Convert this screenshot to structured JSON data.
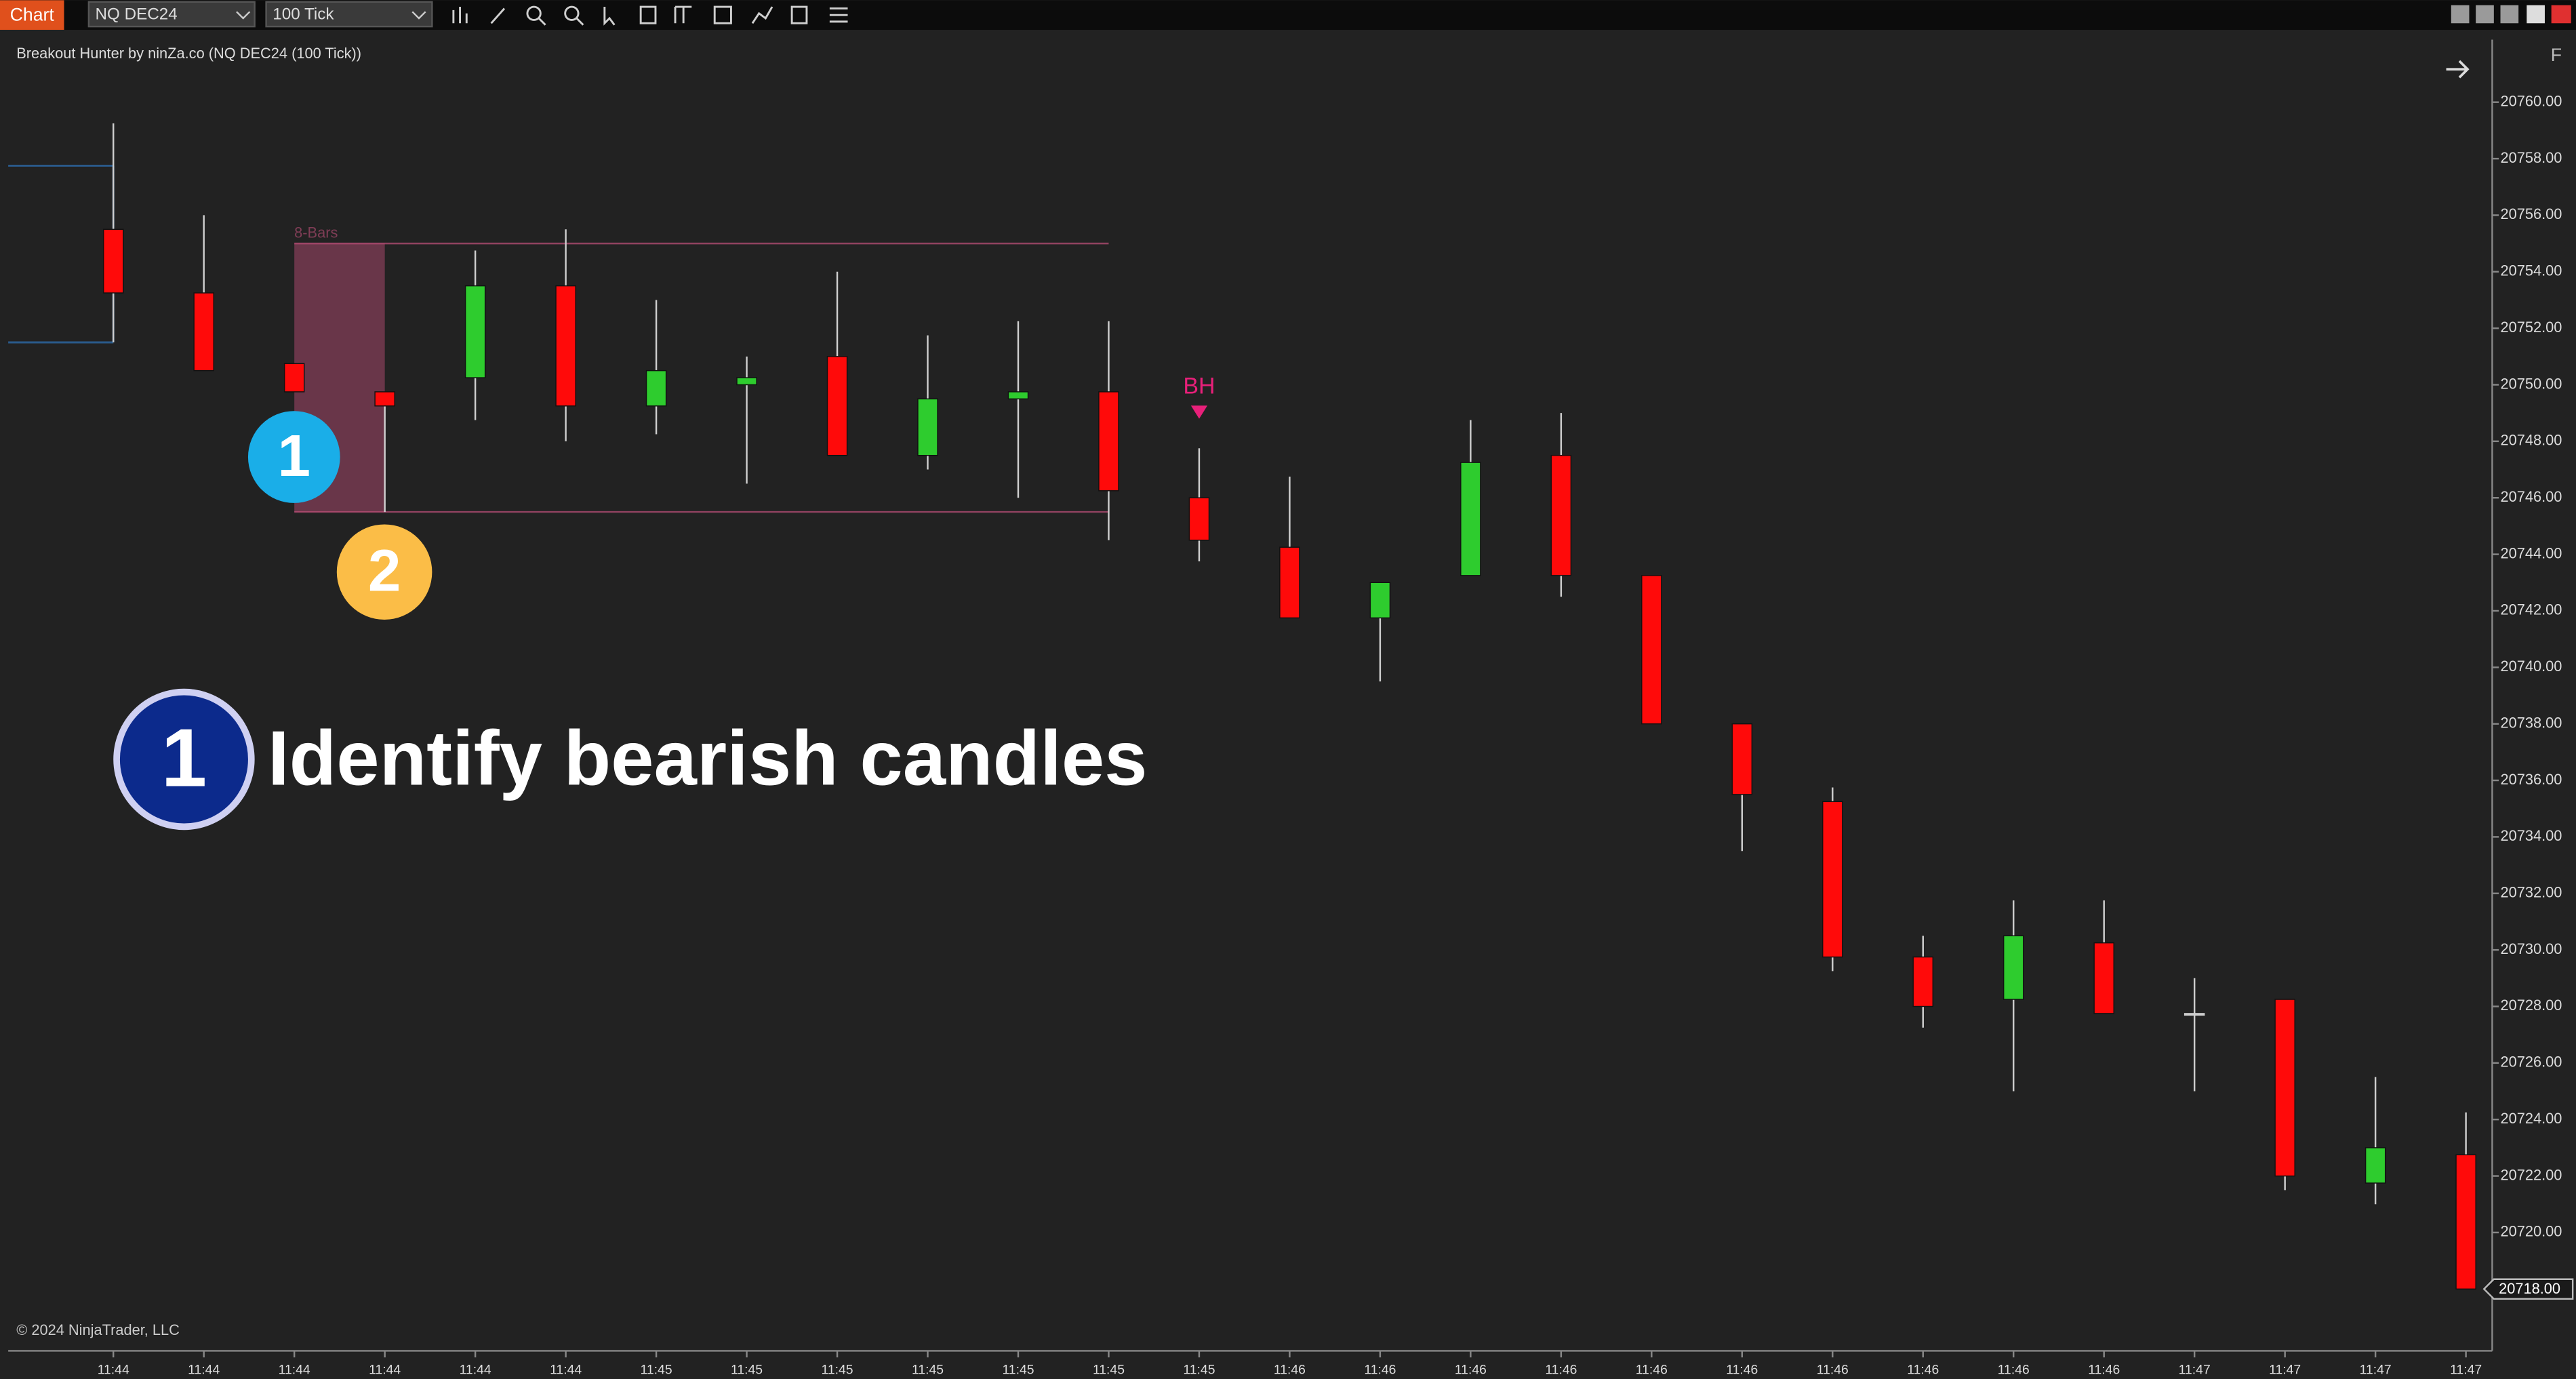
{
  "toolbar": {
    "app": "Chart",
    "instrument": "NQ DEC24",
    "period": "100 Tick"
  },
  "panel_label": "F",
  "copyright": "© 2024 NinjaTrader, LLC",
  "caption": {
    "number": "1",
    "text": "Identify bearish candles"
  },
  "badges": [
    "1",
    "2"
  ],
  "chart_data": {
    "type": "candlestick",
    "title": "Breakout Hunter by ninZa.co (NQ DEC24 (100 Tick))",
    "categories": [
      "11:44",
      "11:44",
      "11:44",
      "11:44",
      "11:44",
      "11:44",
      "11:45",
      "11:45",
      "11:45",
      "11:45",
      "11:45",
      "11:45",
      "11:45",
      "11:46",
      "11:46",
      "11:46",
      "11:46",
      "11:46",
      "11:46",
      "11:46",
      "11:46",
      "11:46",
      "11:46",
      "11:47",
      "11:47",
      "11:47",
      "11:47"
    ],
    "open": [
      20755.5,
      20753.25,
      20750.75,
      20749.75,
      20750.25,
      20753.5,
      20749.25,
      20750,
      20751,
      20747.5,
      20749.5,
      20749.75,
      20746,
      20744.25,
      20741.75,
      20743.25,
      20747.5,
      20743.25,
      20738,
      20735.25,
      20729.75,
      20728.25,
      20730.25,
      20727.75,
      20728.25,
      20721.75,
      20722.75
    ],
    "high": [
      20759.25,
      20756,
      20750.75,
      20749.75,
      20754.75,
      20755.5,
      20753,
      20751,
      20754,
      20751.75,
      20752.25,
      20752.25,
      20747.75,
      20746.75,
      20743,
      20748.75,
      20749,
      20743.25,
      20738,
      20735.75,
      20730.5,
      20731.75,
      20731.75,
      20729,
      20728.25,
      20725.5,
      20724.25
    ],
    "low": [
      20751.5,
      20750.5,
      20749.75,
      20745.5,
      20748.75,
      20748,
      20748.25,
      20746.5,
      20747.5,
      20747,
      20746,
      20744.5,
      20743.75,
      20741.75,
      20739.5,
      20743.25,
      20742.5,
      20738,
      20733.5,
      20729.25,
      20727.25,
      20725,
      20727.75,
      20725,
      20721.5,
      20721,
      20718
    ],
    "close": [
      20753.25,
      20750.5,
      20749.75,
      20749.25,
      20753.5,
      20749.25,
      20750.5,
      20750.25,
      20747.5,
      20749.5,
      20749.75,
      20746.25,
      20744.5,
      20741.75,
      20743,
      20747.25,
      20743.25,
      20738,
      20735.5,
      20729.75,
      20728,
      20730.5,
      20727.75,
      20727.75,
      20722,
      20723,
      20718
    ],
    "up_color": "#2ecc2e",
    "down_color": "#ff0a0a",
    "ylim": [
      20715.9,
      20762.2
    ],
    "yticks": [
      {
        "value": 20720,
        "label": "20720.00"
      },
      {
        "value": 20722,
        "label": "20722.00"
      },
      {
        "value": 20724,
        "label": "20724.00"
      },
      {
        "value": 20726,
        "label": "20726.00"
      },
      {
        "value": 20728,
        "label": "20728.00"
      },
      {
        "value": 20730,
        "label": "20730.00"
      },
      {
        "value": 20732,
        "label": "20732.00"
      },
      {
        "value": 20734,
        "label": "20734.00"
      },
      {
        "value": 20736,
        "label": "20736.00"
      },
      {
        "value": 20738,
        "label": "20738.00"
      },
      {
        "value": 20740,
        "label": "20740.00"
      },
      {
        "value": 20742,
        "label": "20742.00"
      },
      {
        "value": 20744,
        "label": "20744.00"
      },
      {
        "value": 20746,
        "label": "20746.00"
      },
      {
        "value": 20748,
        "label": "20748.00"
      },
      {
        "value": 20750,
        "label": "20750.00"
      },
      {
        "value": 20752,
        "label": "20752.00"
      },
      {
        "value": 20754,
        "label": "20754.00"
      },
      {
        "value": 20756,
        "label": "20756.00"
      },
      {
        "value": 20758,
        "label": "20758.00"
      },
      {
        "value": 20760,
        "label": "20760.00"
      }
    ],
    "last_price": {
      "value": 20718,
      "label": "20718.00"
    },
    "range": {
      "label": "8-Bars",
      "high": 20755,
      "low": 20745.5,
      "color": "#c0507a"
    },
    "prev_range": {
      "high": 20757.75,
      "low": 20751.5,
      "color": "#2a5a8a"
    },
    "signal": {
      "label": "BH",
      "color": "#e8207a"
    },
    "grid": false
  }
}
